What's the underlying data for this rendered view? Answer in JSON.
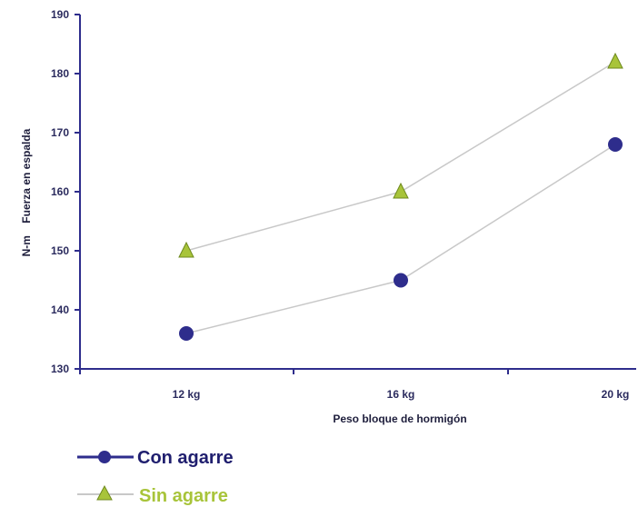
{
  "chart_data": {
    "type": "line",
    "categories": [
      "12 kg",
      "16 kg",
      "20 kg"
    ],
    "series": [
      {
        "name": "Con agarre",
        "values": [
          136,
          145,
          168
        ],
        "marker": "circle",
        "color": "#2e2d8c"
      },
      {
        "name": "Sin agarre",
        "values": [
          150,
          160,
          182
        ],
        "marker": "triangle",
        "color": "#a8c43a"
      }
    ],
    "ylim": [
      130,
      190
    ],
    "yticks": [
      "130",
      "140",
      "150",
      "160",
      "170",
      "180",
      "190"
    ],
    "ylabel": "N-m    Fuerza en espalda",
    "xlabel": "Peso bloque de hormigón",
    "legend_position": "bottom-left",
    "grid": false,
    "colors": {
      "axis": "#2e2d8c",
      "line": "#c8c8c8",
      "legend_line_1": "#2e2d8c",
      "legend_line_2": "#c8c8c8"
    }
  }
}
